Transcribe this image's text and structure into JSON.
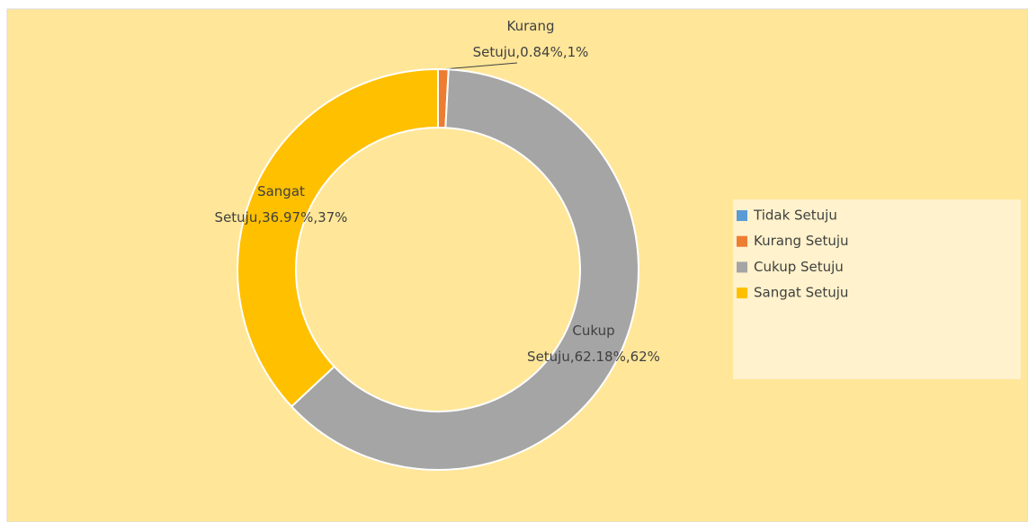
{
  "chart_data": {
    "type": "donut",
    "categories": [
      "Tidak Setuju",
      "Kurang Setuju",
      "Cukup Setuju",
      "Sangat Setuju"
    ],
    "values": [
      0,
      0.84,
      62.18,
      36.97
    ],
    "value_labels": [
      null,
      "Kurang Setuju,0.84%,1%",
      "Setuju,62.18%,62%",
      "Setuju,36.97%,37%"
    ],
    "label_heads": [
      null,
      null,
      "Cukup",
      "Sangat"
    ],
    "colors": [
      "#5B9BD5",
      "#ED7D31",
      "#A5A5A5",
      "#FFC000"
    ],
    "legend": "right"
  }
}
